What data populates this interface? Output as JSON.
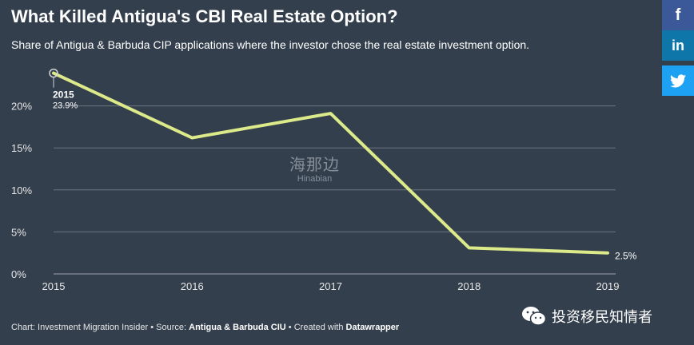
{
  "share_buttons": [
    {
      "name": "facebook",
      "glyph": "f"
    },
    {
      "name": "linkedin",
      "glyph": "in"
    },
    {
      "name": "twitter",
      "glyph": "twitter-bird"
    }
  ],
  "footer": {
    "prefix": "Chart: Investment Migration Insider • Source: ",
    "source": "Antigua & Barbuda CIU",
    "middle": " • Created with ",
    "tool": "Datawrapper"
  },
  "watermark": {
    "cn": "海那边",
    "en": "Hinabian"
  },
  "wechat": {
    "label": "投资移民知情者"
  },
  "colors": {
    "background": "#343f4d",
    "line": "#dcea8a",
    "grid": "#6b7480"
  },
  "chart_data": {
    "type": "line",
    "title": "What Killed Antigua's CBI Real Estate Option?",
    "subtitle": "Share of Antigua & Barbuda CIP applications where the investor chose the real estate investment option.",
    "x": [
      "2015",
      "2016",
      "2017",
      "2018",
      "2019"
    ],
    "values": [
      23.9,
      16.2,
      19.1,
      3.1,
      2.5
    ],
    "ylim": [
      0,
      25
    ],
    "yticks": [
      0,
      5,
      10,
      15,
      20
    ],
    "ytick_labels": [
      "0%",
      "5%",
      "10%",
      "15%",
      "20%"
    ],
    "grid": true,
    "annotations": [
      {
        "x": "2015",
        "year_label": "2015",
        "value_label": "23.9%"
      },
      {
        "x": "2019",
        "value_label": "2.5%"
      }
    ]
  }
}
